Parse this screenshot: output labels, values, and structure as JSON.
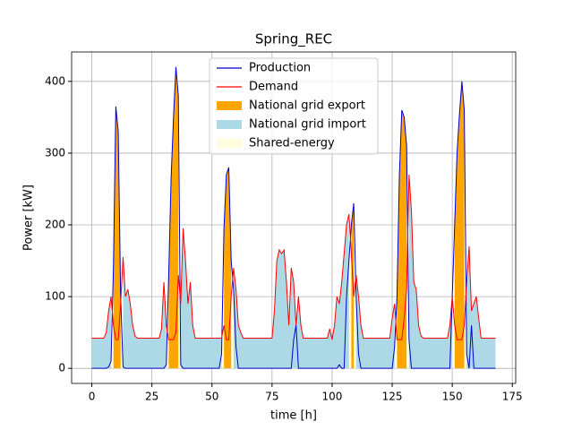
{
  "chart_data": {
    "type": "line",
    "title": "Spring_REC",
    "x_label": "time [h]",
    "y_label": "Power [kW]",
    "x": [
      0,
      1,
      2,
      3,
      4,
      5,
      6,
      7,
      8,
      9,
      10,
      11,
      12,
      13,
      14,
      15,
      16,
      17,
      18,
      19,
      20,
      21,
      22,
      23,
      24,
      25,
      26,
      27,
      28,
      29,
      30,
      31,
      32,
      33,
      34,
      35,
      36,
      37,
      38,
      39,
      40,
      41,
      42,
      43,
      44,
      45,
      46,
      47,
      48,
      49,
      50,
      51,
      52,
      53,
      54,
      55,
      56,
      57,
      58,
      59,
      60,
      61,
      62,
      63,
      64,
      65,
      66,
      67,
      68,
      69,
      70,
      71,
      72,
      73,
      74,
      75,
      76,
      77,
      78,
      79,
      80,
      81,
      82,
      83,
      84,
      85,
      86,
      87,
      88,
      89,
      90,
      91,
      92,
      93,
      94,
      95,
      96,
      97,
      98,
      99,
      100,
      101,
      102,
      103,
      104,
      105,
      106,
      107,
      108,
      109,
      110,
      111,
      112,
      113,
      114,
      115,
      116,
      117,
      118,
      119,
      120,
      121,
      122,
      123,
      124,
      125,
      126,
      127,
      128,
      129,
      130,
      131,
      132,
      133,
      134,
      135,
      136,
      137,
      138,
      139,
      140,
      141,
      142,
      143,
      144,
      145,
      146,
      147,
      148,
      149,
      150,
      151,
      152,
      153,
      154,
      155,
      156,
      157,
      158,
      159,
      160,
      161,
      162,
      163,
      164,
      165,
      166,
      167,
      168
    ],
    "series": [
      {
        "name": "Production",
        "color": "#0000cc",
        "values": [
          0,
          0,
          0,
          0,
          0,
          0,
          0,
          2,
          10,
          140,
          365,
          330,
          100,
          2,
          0,
          0,
          0,
          0,
          0,
          0,
          0,
          0,
          0,
          0,
          0,
          0,
          0,
          0,
          0,
          0,
          0,
          5,
          130,
          265,
          350,
          420,
          380,
          5,
          0,
          0,
          0,
          0,
          0,
          0,
          0,
          0,
          0,
          0,
          0,
          0,
          0,
          0,
          0,
          0,
          20,
          195,
          270,
          280,
          150,
          110,
          30,
          0,
          0,
          0,
          0,
          0,
          0,
          0,
          0,
          0,
          0,
          0,
          0,
          0,
          0,
          0,
          0,
          0,
          0,
          0,
          0,
          0,
          0,
          0,
          40,
          60,
          0,
          0,
          0,
          0,
          0,
          0,
          0,
          0,
          0,
          0,
          0,
          0,
          0,
          0,
          0,
          0,
          0,
          5,
          0,
          0,
          100,
          150,
          200,
          230,
          100,
          20,
          0,
          0,
          0,
          0,
          0,
          0,
          0,
          0,
          0,
          0,
          0,
          0,
          0,
          0,
          30,
          100,
          270,
          360,
          350,
          310,
          40,
          0,
          0,
          0,
          0,
          0,
          0,
          0,
          0,
          0,
          0,
          0,
          0,
          0,
          0,
          0,
          0,
          0,
          100,
          200,
          300,
          355,
          400,
          360,
          20,
          0,
          60,
          0,
          0,
          0,
          0,
          0,
          0,
          0,
          0,
          0,
          0
        ]
      },
      {
        "name": "Demand",
        "color": "#ff0000",
        "values": [
          42,
          42,
          42,
          42,
          42,
          42,
          50,
          80,
          100,
          60,
          40,
          40,
          90,
          155,
          100,
          110,
          90,
          60,
          45,
          42,
          42,
          42,
          42,
          42,
          42,
          42,
          42,
          42,
          42,
          55,
          120,
          60,
          40,
          40,
          40,
          50,
          130,
          90,
          195,
          150,
          90,
          120,
          60,
          42,
          42,
          42,
          42,
          42,
          42,
          42,
          42,
          42,
          42,
          42,
          42,
          60,
          40,
          40,
          100,
          140,
          110,
          60,
          50,
          42,
          42,
          42,
          42,
          42,
          42,
          42,
          42,
          42,
          42,
          42,
          42,
          42,
          80,
          150,
          165,
          160,
          165,
          120,
          60,
          140,
          120,
          60,
          100,
          60,
          42,
          42,
          42,
          42,
          42,
          42,
          42,
          42,
          42,
          42,
          42,
          55,
          40,
          60,
          100,
          90,
          120,
          160,
          200,
          215,
          160,
          100,
          130,
          100,
          60,
          42,
          42,
          42,
          42,
          42,
          42,
          42,
          42,
          42,
          42,
          42,
          42,
          70,
          90,
          40,
          40,
          40,
          70,
          110,
          270,
          220,
          120,
          110,
          60,
          45,
          42,
          42,
          42,
          42,
          42,
          42,
          42,
          42,
          42,
          42,
          42,
          60,
          100,
          60,
          40,
          40,
          40,
          60,
          120,
          170,
          80,
          90,
          100,
          70,
          42,
          42,
          42,
          42,
          42,
          42,
          42
        ]
      }
    ],
    "fills": [
      {
        "name": "National grid export",
        "color": "#ffa500"
      },
      {
        "name": "National grid import",
        "color": "#add8e6"
      },
      {
        "name": "Shared-energy",
        "color": "#ffffe0"
      }
    ],
    "xlim": [
      -8.4,
      176.4
    ],
    "xticks": [
      0,
      25,
      50,
      75,
      100,
      125,
      150,
      175
    ],
    "ylim": [
      -21,
      441
    ],
    "yticks": [
      0,
      100,
      200,
      300,
      400
    ],
    "grid": true,
    "legend": "upper center"
  }
}
